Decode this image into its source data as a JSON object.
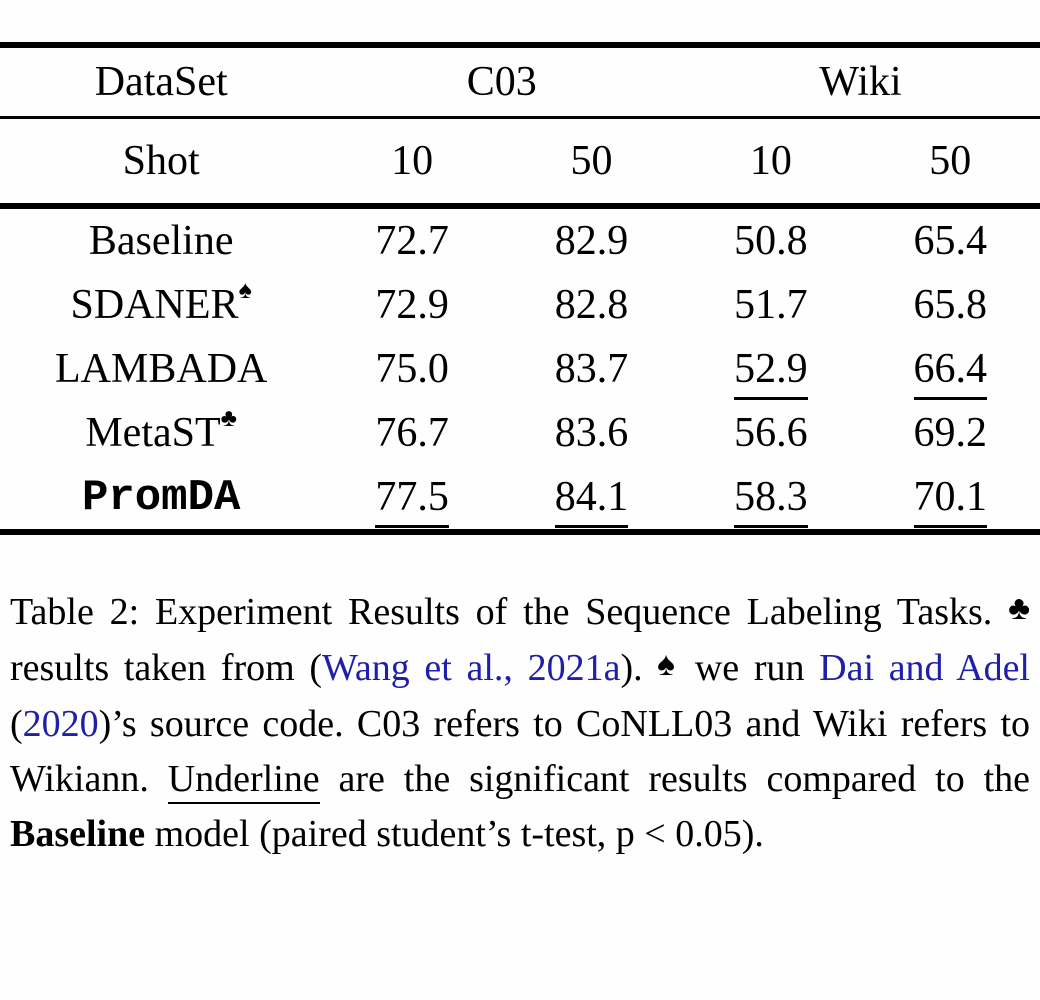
{
  "colors": {
    "link_blue": "#1f1fa8",
    "text": "#000000",
    "rule": "#000000"
  },
  "table": {
    "dataset_header": "DataSet",
    "col_groups": [
      "C03",
      "Wiki"
    ],
    "shot_header": "Shot",
    "shot_values": [
      "10",
      "50",
      "10",
      "50"
    ],
    "rows": [
      {
        "model": "Baseline",
        "sup": "",
        "mono": false,
        "values": [
          "72.7",
          "82.9",
          "50.8",
          "65.4"
        ],
        "underline": [
          false,
          false,
          false,
          false
        ]
      },
      {
        "model": "SDANER",
        "sup": "♠",
        "mono": false,
        "values": [
          "72.9",
          "82.8",
          "51.7",
          "65.8"
        ],
        "underline": [
          false,
          false,
          false,
          false
        ]
      },
      {
        "model": "LAMBADA",
        "sup": "",
        "mono": false,
        "values": [
          "75.0",
          "83.7",
          "52.9",
          "66.4"
        ],
        "underline": [
          false,
          false,
          true,
          true
        ]
      },
      {
        "model": "MetaST",
        "sup": "♣",
        "mono": false,
        "values": [
          "76.7",
          "83.6",
          "56.6",
          "69.2"
        ],
        "underline": [
          false,
          false,
          false,
          false
        ]
      },
      {
        "model": "PromDA",
        "sup": "",
        "mono": true,
        "values": [
          "77.5",
          "84.1",
          "58.3",
          "70.1"
        ],
        "underline": [
          true,
          true,
          true,
          true
        ]
      }
    ]
  },
  "caption": {
    "segments": [
      {
        "text": "Table 2: Experiment Results of the Sequence Labeling Tasks. "
      },
      {
        "text": "♣",
        "style": "symbol-club"
      },
      {
        "text": " results taken from ("
      },
      {
        "text": "Wang et al., 2021a",
        "style": "link"
      },
      {
        "text": "). "
      },
      {
        "text": "♠",
        "style": "symbol-spade"
      },
      {
        "text": " we run "
      },
      {
        "text": "Dai and Adel",
        "style": "link"
      },
      {
        "text": " ("
      },
      {
        "text": "2020",
        "style": "link"
      },
      {
        "text": ")’s source code. C03 refers to CoNLL03 and Wiki refers to Wikiann. "
      },
      {
        "text": "Underline",
        "style": "underline"
      },
      {
        "text": " are the significant results compared to the "
      },
      {
        "text": "Baseline",
        "style": "bold"
      },
      {
        "text": " model (paired student’s t-test, p < 0.05)."
      }
    ]
  }
}
